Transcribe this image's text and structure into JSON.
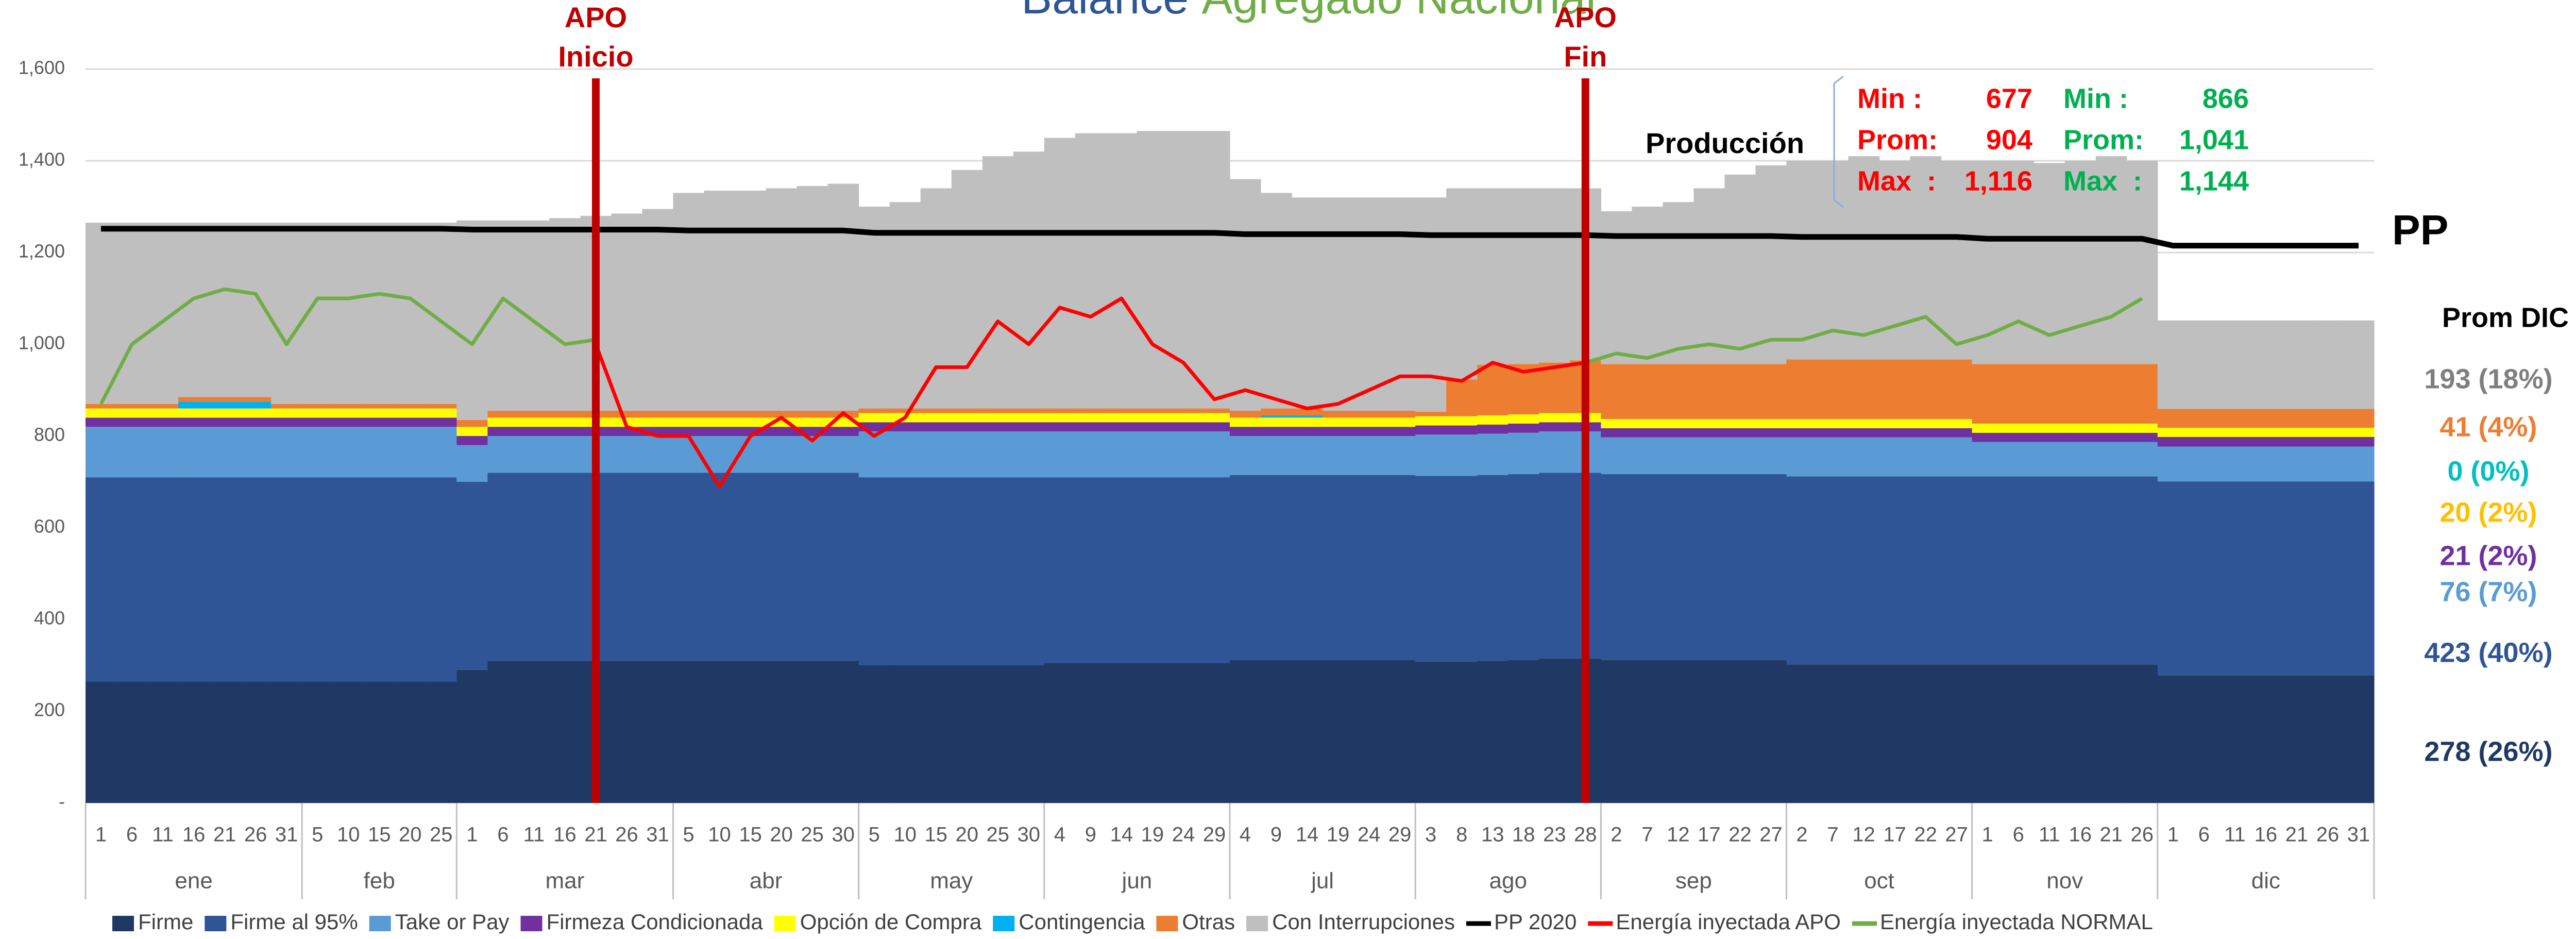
{
  "chart_data": {
    "type": "stacked_area",
    "title_parts": [
      {
        "text": "Balance",
        "color": "#2f5597"
      },
      {
        "text": "Agregado Nacional",
        "color": "#70ad47"
      }
    ],
    "months": [
      {
        "name": "ene",
        "days": [
          1,
          6,
          11,
          16,
          21,
          26,
          31
        ]
      },
      {
        "name": "feb",
        "days": [
          5,
          10,
          15,
          20,
          25
        ]
      },
      {
        "name": "mar",
        "days": [
          1,
          6,
          11,
          16,
          21,
          26,
          31
        ]
      },
      {
        "name": "abr",
        "days": [
          5,
          10,
          15,
          20,
          25,
          30
        ]
      },
      {
        "name": "may",
        "days": [
          5,
          10,
          15,
          20,
          25,
          30
        ]
      },
      {
        "name": "jun",
        "days": [
          4,
          9,
          14,
          19,
          24,
          29
        ]
      },
      {
        "name": "jul",
        "days": [
          4,
          9,
          14,
          19,
          24,
          29
        ]
      },
      {
        "name": "ago",
        "days": [
          3,
          8,
          13,
          18,
          23,
          28
        ]
      },
      {
        "name": "sep",
        "days": [
          2,
          7,
          12,
          17,
          22,
          27
        ]
      },
      {
        "name": "oct",
        "days": [
          2,
          7,
          12,
          17,
          22,
          27
        ]
      },
      {
        "name": "nov",
        "days": [
          1,
          6,
          11,
          16,
          21,
          26
        ]
      },
      {
        "name": "dic",
        "days": [
          1,
          6,
          11,
          16,
          21,
          26,
          31
        ]
      }
    ],
    "ylim": [
      0,
      1600
    ],
    "yticks": [
      {
        "value": 0,
        "label": "-"
      },
      200,
      400,
      600,
      800,
      {
        "value": 1000,
        "label": "1,000"
      },
      {
        "value": 1200,
        "label": "1,200"
      },
      {
        "value": 1400,
        "label": "1,400"
      },
      {
        "value": 1600,
        "label": "1,600"
      }
    ],
    "grid": true,
    "series": [
      {
        "name": "Firme",
        "type": "area",
        "color": "#1f3864",
        "values": [
          265,
          265,
          265,
          265,
          265,
          265,
          265,
          265,
          265,
          265,
          265,
          265,
          290,
          310,
          310,
          310,
          310,
          310,
          310,
          310,
          310,
          310,
          310,
          310,
          310,
          300,
          300,
          300,
          300,
          300,
          300,
          305,
          305,
          305,
          305,
          305,
          305,
          312,
          312,
          312,
          312,
          312,
          312,
          308,
          308,
          310,
          312,
          315,
          315,
          312,
          312,
          312,
          312,
          312,
          312,
          302,
          302,
          302,
          302,
          302,
          302,
          302,
          302,
          302,
          302,
          302,
          302,
          278,
          278,
          278,
          278,
          278,
          278,
          278
        ]
      },
      {
        "name": "Firme al 95%",
        "type": "area",
        "color": "#2f5597",
        "values": [
          445,
          445,
          445,
          445,
          445,
          445,
          445,
          445,
          445,
          445,
          445,
          445,
          410,
          410,
          410,
          410,
          410,
          410,
          410,
          410,
          410,
          410,
          410,
          410,
          410,
          410,
          410,
          410,
          410,
          410,
          410,
          405,
          405,
          405,
          405,
          405,
          405,
          403,
          403,
          403,
          403,
          403,
          403,
          405,
          405,
          405,
          405,
          405,
          405,
          405,
          405,
          405,
          405,
          405,
          405,
          410,
          410,
          410,
          410,
          410,
          410,
          410,
          410,
          410,
          410,
          410,
          410,
          423,
          423,
          423,
          423,
          423,
          423,
          423
        ]
      },
      {
        "name": "Take or Pay",
        "type": "area",
        "color": "#5b9bd5",
        "values": [
          110,
          110,
          110,
          110,
          110,
          110,
          110,
          110,
          110,
          110,
          110,
          110,
          80,
          80,
          80,
          80,
          80,
          80,
          80,
          80,
          80,
          80,
          80,
          80,
          80,
          100,
          100,
          100,
          100,
          100,
          100,
          100,
          100,
          100,
          100,
          100,
          100,
          85,
          85,
          85,
          85,
          85,
          85,
          90,
          90,
          90,
          90,
          90,
          90,
          80,
          80,
          80,
          80,
          80,
          80,
          85,
          85,
          85,
          85,
          85,
          85,
          75,
          75,
          75,
          75,
          75,
          75,
          76,
          76,
          76,
          76,
          76,
          76,
          76
        ]
      },
      {
        "name": "Firmeza Condicionada",
        "type": "area",
        "color": "#7030a0",
        "values": [
          20,
          20,
          20,
          20,
          20,
          20,
          20,
          20,
          20,
          20,
          20,
          20,
          20,
          20,
          20,
          20,
          20,
          20,
          20,
          20,
          20,
          20,
          20,
          20,
          20,
          20,
          20,
          20,
          20,
          20,
          20,
          20,
          20,
          20,
          20,
          20,
          20,
          20,
          20,
          20,
          20,
          20,
          20,
          20,
          20,
          20,
          20,
          20,
          20,
          20,
          20,
          20,
          20,
          20,
          20,
          20,
          20,
          20,
          20,
          20,
          20,
          20,
          20,
          20,
          20,
          20,
          20,
          21,
          21,
          21,
          21,
          21,
          21,
          21
        ]
      },
      {
        "name": "Opción de Compra",
        "type": "area",
        "color": "#ffff00",
        "values": [
          20,
          20,
          20,
          20,
          20,
          20,
          20,
          20,
          20,
          20,
          20,
          20,
          20,
          20,
          20,
          20,
          20,
          20,
          20,
          20,
          20,
          20,
          20,
          20,
          20,
          20,
          20,
          20,
          20,
          20,
          20,
          20,
          20,
          20,
          20,
          20,
          20,
          20,
          20,
          20,
          20,
          20,
          20,
          20,
          20,
          20,
          20,
          20,
          20,
          20,
          20,
          20,
          20,
          20,
          20,
          20,
          20,
          20,
          20,
          20,
          20,
          20,
          20,
          20,
          20,
          20,
          20,
          20,
          20,
          20,
          20,
          20,
          20,
          20
        ]
      },
      {
        "name": "Contingencia",
        "type": "area",
        "color": "#00b0f0",
        "values": [
          0,
          0,
          0,
          15,
          15,
          15,
          0,
          0,
          0,
          0,
          0,
          0,
          0,
          0,
          0,
          0,
          0,
          0,
          0,
          0,
          0,
          0,
          0,
          0,
          0,
          0,
          0,
          0,
          0,
          0,
          0,
          0,
          0,
          0,
          0,
          0,
          0,
          0,
          5,
          5,
          0,
          0,
          0,
          0,
          0,
          0,
          0,
          0,
          0,
          0,
          0,
          0,
          0,
          0,
          0,
          0,
          0,
          0,
          0,
          0,
          0,
          0,
          0,
          0,
          0,
          0,
          0,
          0,
          0,
          0,
          0,
          0,
          0,
          0
        ]
      },
      {
        "name": "Otras",
        "type": "area",
        "color": "#ed7d31",
        "values": [
          10,
          10,
          10,
          10,
          10,
          10,
          10,
          10,
          10,
          10,
          10,
          10,
          15,
          15,
          15,
          15,
          15,
          15,
          15,
          15,
          15,
          15,
          15,
          15,
          15,
          10,
          10,
          10,
          10,
          10,
          10,
          10,
          10,
          10,
          10,
          10,
          10,
          15,
          15,
          15,
          15,
          15,
          15,
          10,
          80,
          110,
          110,
          110,
          115,
          120,
          120,
          120,
          120,
          120,
          120,
          130,
          130,
          130,
          130,
          130,
          130,
          130,
          130,
          130,
          130,
          130,
          130,
          41,
          41,
          41,
          41,
          41,
          41,
          41
        ]
      },
      {
        "name": "Con Interrupciones",
        "type": "area",
        "color": "#bfbfbf",
        "values": [
          395,
          395,
          395,
          380,
          380,
          380,
          395,
          395,
          395,
          395,
          395,
          395,
          435,
          415,
          415,
          420,
          425,
          430,
          440,
          475,
          480,
          480,
          485,
          490,
          495,
          440,
          450,
          480,
          520,
          550,
          560,
          590,
          600,
          600,
          605,
          605,
          605,
          505,
          470,
          460,
          465,
          465,
          465,
          467,
          417,
          385,
          383,
          380,
          375,
          333,
          343,
          353,
          383,
          413,
          433,
          433,
          433,
          443,
          433,
          443,
          433,
          443,
          443,
          438,
          443,
          453,
          443,
          193,
          193,
          193,
          193,
          193,
          193,
          193
        ]
      },
      {
        "name": "PP 2020",
        "type": "line",
        "color": "#000000",
        "values": [
          1252,
          1252,
          1252,
          1252,
          1252,
          1252,
          1252,
          1252,
          1252,
          1252,
          1252,
          1252,
          1250,
          1250,
          1250,
          1250,
          1250,
          1250,
          1250,
          1248,
          1248,
          1248,
          1248,
          1248,
          1248,
          1243,
          1243,
          1243,
          1243,
          1243,
          1243,
          1243,
          1243,
          1243,
          1243,
          1243,
          1243,
          1240,
          1240,
          1240,
          1240,
          1240,
          1240,
          1238,
          1238,
          1238,
          1238,
          1238,
          1238,
          1236,
          1236,
          1236,
          1236,
          1236,
          1236,
          1234,
          1234,
          1234,
          1234,
          1234,
          1234,
          1230,
          1230,
          1230,
          1230,
          1230,
          1230,
          1215,
          1215,
          1215,
          1215,
          1215,
          1215,
          1215
        ]
      },
      {
        "name": "Energía inyectada APO",
        "type": "line",
        "color": "#ff0000",
        "values": [
          null,
          null,
          null,
          null,
          null,
          null,
          null,
          null,
          null,
          null,
          null,
          null,
          null,
          null,
          null,
          null,
          1000,
          820,
          800,
          800,
          690,
          800,
          840,
          790,
          850,
          800,
          840,
          950,
          950,
          1050,
          1000,
          1080,
          1060,
          1100,
          1000,
          960,
          880,
          900,
          880,
          860,
          870,
          900,
          930,
          930,
          920,
          960,
          940,
          950,
          960,
          null,
          null,
          null,
          null,
          null,
          null,
          null,
          null,
          null,
          null,
          null,
          null,
          null,
          null,
          null,
          null,
          null,
          null,
          null,
          null,
          null,
          null,
          null,
          null,
          null
        ]
      },
      {
        "name": "Energía inyectada NORMAL",
        "type": "line",
        "color": "#70ad47",
        "values": [
          870,
          1000,
          1050,
          1100,
          1120,
          1110,
          1000,
          1100,
          1100,
          1110,
          1100,
          1050,
          1000,
          1100,
          1050,
          1000,
          1010,
          null,
          null,
          null,
          null,
          null,
          null,
          null,
          null,
          null,
          null,
          null,
          null,
          null,
          null,
          null,
          null,
          null,
          null,
          null,
          null,
          null,
          null,
          null,
          null,
          null,
          null,
          null,
          null,
          null,
          null,
          null,
          960,
          980,
          970,
          990,
          1000,
          990,
          1010,
          1010,
          1030,
          1020,
          1040,
          1060,
          1000,
          1020,
          1050,
          1020,
          1040,
          1060,
          1100,
          null,
          null,
          null,
          null,
          null,
          null,
          null
        ]
      }
    ],
    "annotations": [
      {
        "lines": [
          "APO",
          "Inicio"
        ],
        "month": "mar",
        "day": 21,
        "color": "#c00000"
      },
      {
        "lines": [
          "APO",
          "Fin"
        ],
        "month": "ago",
        "day": 28,
        "color": "#c00000"
      }
    ],
    "line_label": "PP",
    "production_box": {
      "title": "Producción",
      "columns": [
        {
          "color": "#ff0000",
          "rows": [
            {
              "label": "Min :",
              "value": 677
            },
            {
              "label": "Prom:",
              "value": 904
            },
            {
              "label": "Max  :",
              "value": 1116,
              "value_label": "1,116"
            }
          ]
        },
        {
          "color": "#00b050",
          "rows": [
            {
              "label": "Min :",
              "value": 866
            },
            {
              "label": "Prom:",
              "value": 1041,
              "value_label": "1,041"
            },
            {
              "label": "Max  :",
              "value": 1144,
              "value_label": "1,144"
            }
          ]
        }
      ]
    },
    "prom_dic": {
      "title": "Prom DIC",
      "items": [
        {
          "value": 193,
          "share": 18,
          "label": "193 (18%)",
          "color": "#7f7f7f"
        },
        {
          "value": 41,
          "share": 4,
          "label": "41 (4%)",
          "color": "#ed7d31"
        },
        {
          "value": 0,
          "share": 0,
          "label": "0 (0%)",
          "color": "#00c0c0"
        },
        {
          "value": 20,
          "share": 2,
          "label": "20 (2%)",
          "color": "#ffc000"
        },
        {
          "value": 21,
          "share": 2,
          "label": "21 (2%)",
          "color": "#7030a0"
        },
        {
          "value": 76,
          "share": 7,
          "label": "76 (7%)",
          "color": "#5b9bd5"
        },
        {
          "value": 423,
          "share": 40,
          "label": "423 (40%)",
          "color": "#2f5597"
        },
        {
          "value": 278,
          "share": 26,
          "label": "278 (26%)",
          "color": "#1f3864"
        }
      ]
    }
  }
}
